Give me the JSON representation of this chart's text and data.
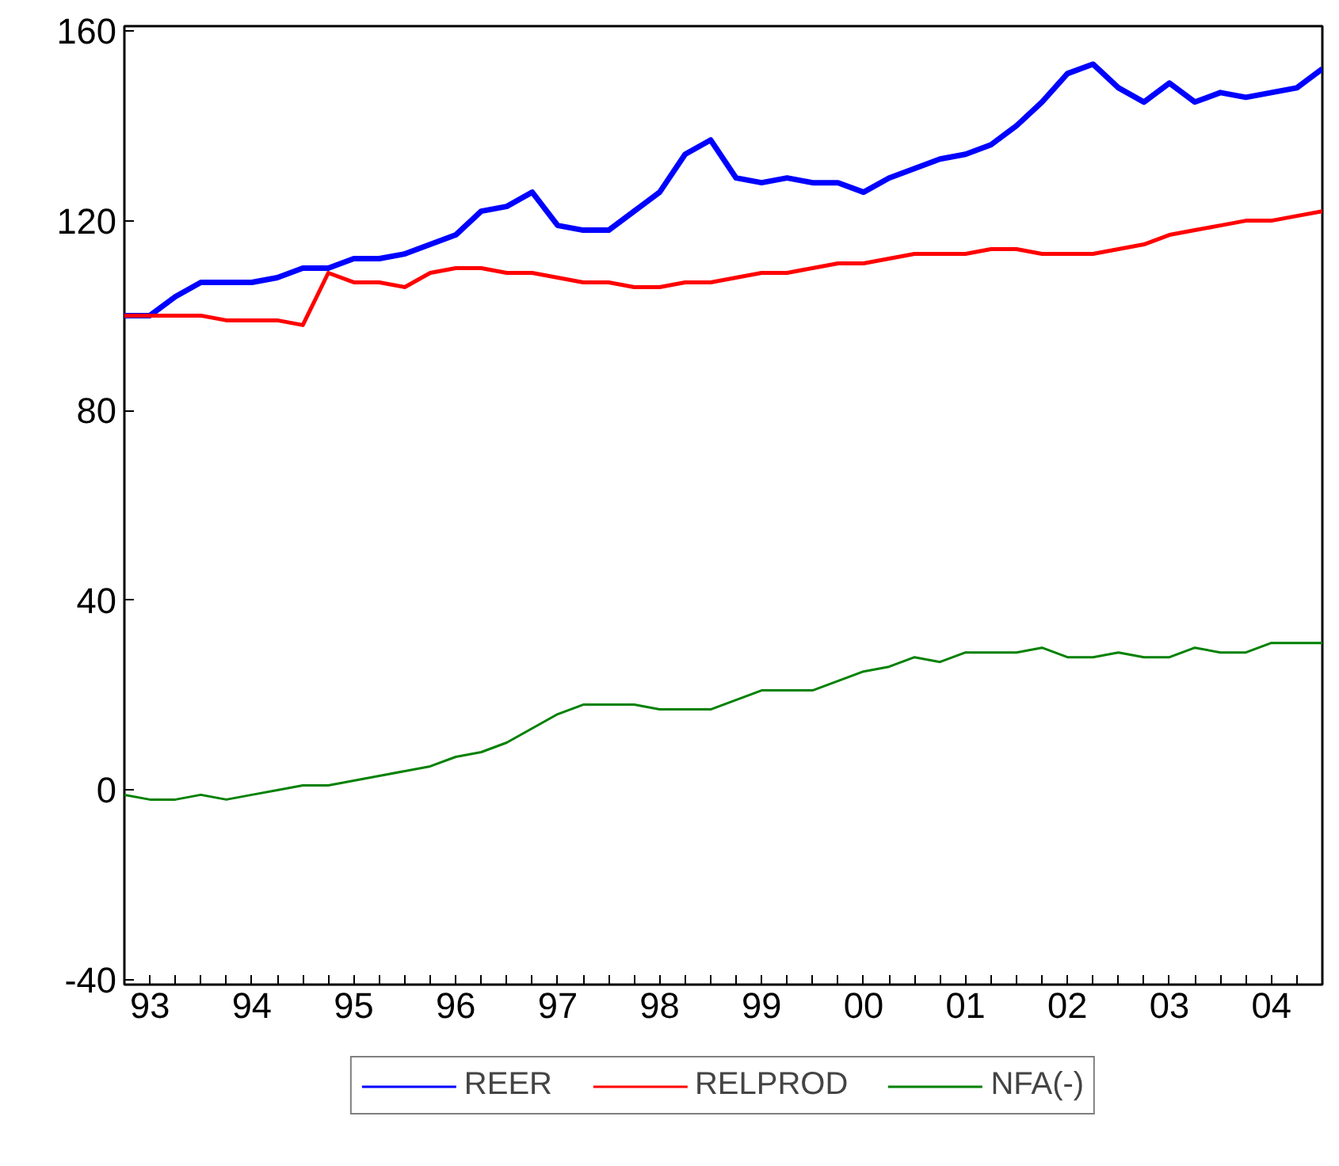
{
  "chart_data": {
    "type": "line",
    "categories": [
      null,
      "93",
      null,
      null,
      null,
      "94",
      null,
      null,
      null,
      "95",
      null,
      null,
      null,
      "96",
      null,
      null,
      null,
      "97",
      null,
      null,
      null,
      "98",
      null,
      null,
      null,
      "99",
      null,
      null,
      null,
      "00",
      null,
      null,
      null,
      "01",
      null,
      null,
      null,
      "02",
      null,
      null,
      null,
      "03",
      null,
      null,
      null,
      "04",
      null,
      null
    ],
    "series": [
      {
        "name": "REER",
        "color": "#0000ff",
        "values": [
          100,
          100,
          104,
          107,
          107,
          107,
          108,
          110,
          110,
          112,
          112,
          113,
          115,
          117,
          122,
          123,
          126,
          119,
          118,
          118,
          122,
          126,
          134,
          137,
          129,
          128,
          129,
          128,
          128,
          126,
          129,
          131,
          133,
          134,
          136,
          140,
          145,
          151,
          153,
          148,
          145,
          149,
          145,
          147,
          146,
          147,
          148,
          152
        ]
      },
      {
        "name": "RELPROD",
        "color": "#ff0000",
        "values": [
          100,
          100,
          100,
          100,
          99,
          99,
          99,
          98,
          109,
          107,
          107,
          106,
          109,
          110,
          110,
          109,
          109,
          108,
          107,
          107,
          106,
          106,
          107,
          107,
          108,
          109,
          109,
          110,
          111,
          111,
          112,
          113,
          113,
          113,
          114,
          114,
          113,
          113,
          113,
          114,
          115,
          117,
          118,
          119,
          120,
          120,
          121,
          122
        ]
      },
      {
        "name": "NFA(-)",
        "color": "#008000",
        "values": [
          -1,
          -2,
          -2,
          -1,
          -2,
          -1,
          0,
          1,
          1,
          2,
          3,
          4,
          5,
          7,
          8,
          10,
          13,
          16,
          18,
          18,
          18,
          17,
          17,
          17,
          19,
          21,
          21,
          21,
          23,
          25,
          26,
          28,
          27,
          29,
          29,
          29,
          30,
          28,
          28,
          29,
          28,
          28,
          30,
          29,
          29,
          31,
          31,
          31
        ]
      }
    ],
    "ylim": [
      -41,
      161
    ],
    "yticks": [
      -40,
      0,
      40,
      80,
      120,
      160
    ],
    "grid": false,
    "legend": "bottom",
    "marker": "none",
    "line_style": "solid"
  }
}
